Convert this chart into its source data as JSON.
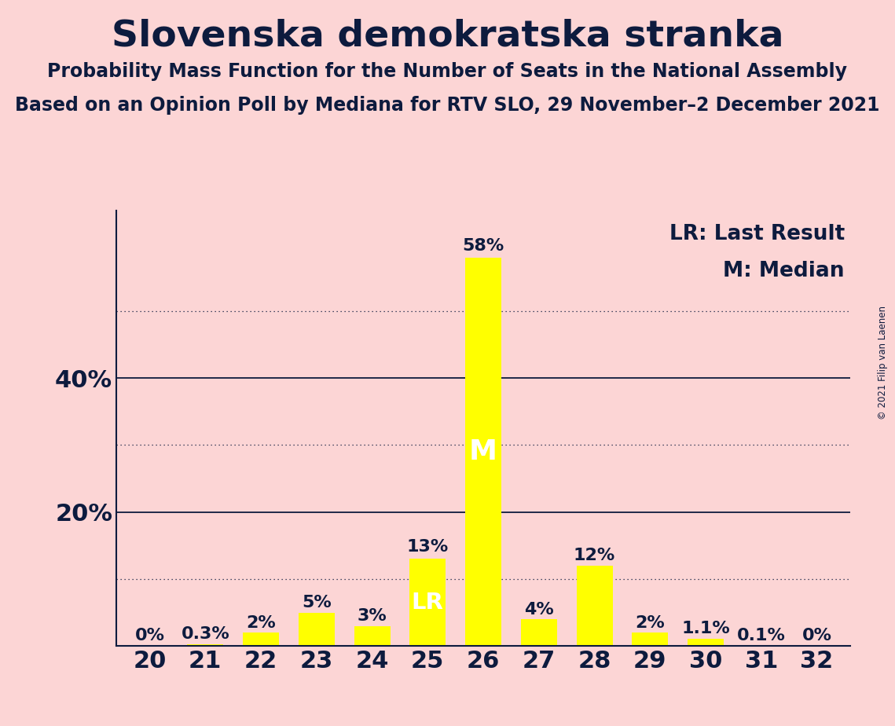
{
  "title": "Slovenska demokratska stranka",
  "subtitle1": "Probability Mass Function for the Number of Seats in the National Assembly",
  "subtitle2": "Based on an Opinion Poll by Mediana for RTV SLO, 29 November–2 December 2021",
  "copyright": "© 2021 Filip van Laenen",
  "legend_lr": "LR: Last Result",
  "legend_m": "M: Median",
  "background_color": "#fcd5d5",
  "bar_color": "#ffff00",
  "text_color": "#0d1b3e",
  "categories": [
    20,
    21,
    22,
    23,
    24,
    25,
    26,
    27,
    28,
    29,
    30,
    31,
    32
  ],
  "values": [
    0.0,
    0.3,
    2.0,
    5.0,
    3.0,
    13.0,
    58.0,
    4.0,
    12.0,
    2.0,
    1.1,
    0.1,
    0.0
  ],
  "labels": [
    "0%",
    "0.3%",
    "2%",
    "5%",
    "3%",
    "13%",
    "58%",
    "4%",
    "12%",
    "2%",
    "1.1%",
    "0.1%",
    "0%"
  ],
  "lr_bar": 25,
  "median_bar": 26,
  "ylim": [
    0,
    65
  ],
  "solid_yticks": [
    20,
    40
  ],
  "dotted_yticks": [
    10,
    30,
    50
  ],
  "title_fontsize": 34,
  "subtitle_fontsize": 17,
  "tick_fontsize": 22,
  "label_fontsize": 16,
  "legend_fontsize": 19,
  "bar_width": 0.65
}
